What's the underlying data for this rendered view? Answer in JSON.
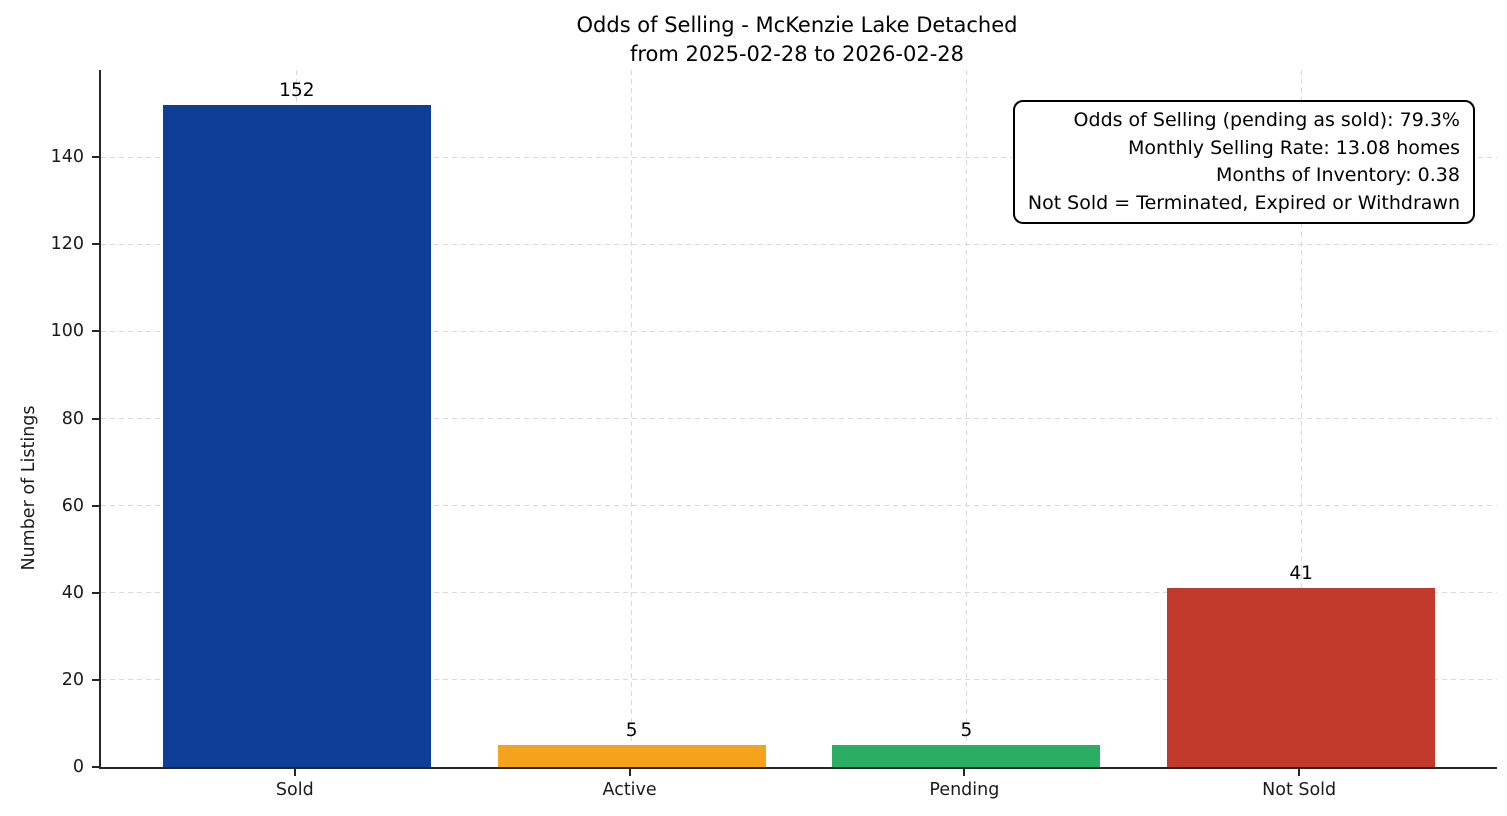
{
  "chart_data": {
    "type": "bar",
    "title": "Odds of Selling - McKenzie Lake Detached",
    "subtitle": "from 2025-02-28 to 2026-02-28",
    "ylabel": "Number of Listings",
    "categories": [
      "Sold",
      "Active",
      "Pending",
      "Not Sold"
    ],
    "values": [
      152,
      5,
      5,
      41
    ],
    "bar_colors": [
      "#0e3e96",
      "#f5a31d",
      "#2bad63",
      "#c23a2b"
    ],
    "ylim": [
      0,
      160
    ],
    "yticks": [
      0,
      20,
      40,
      60,
      80,
      100,
      120,
      140
    ],
    "grid": "dashed, horizontal and vertical",
    "legend_position": "none",
    "annotation_lines": [
      "Odds of Selling (pending as sold): 79.3%",
      "Monthly Selling Rate: 13.08 homes",
      "Months of Inventory: 0.38",
      "Not Sold = Terminated, Expired or Withdrawn"
    ],
    "stats": {
      "odds_of_selling_pending_as_sold": "79.3%",
      "monthly_selling_rate": "13.08 homes",
      "months_of_inventory": "0.38",
      "not_sold_definition": "Terminated, Expired or Withdrawn"
    }
  }
}
